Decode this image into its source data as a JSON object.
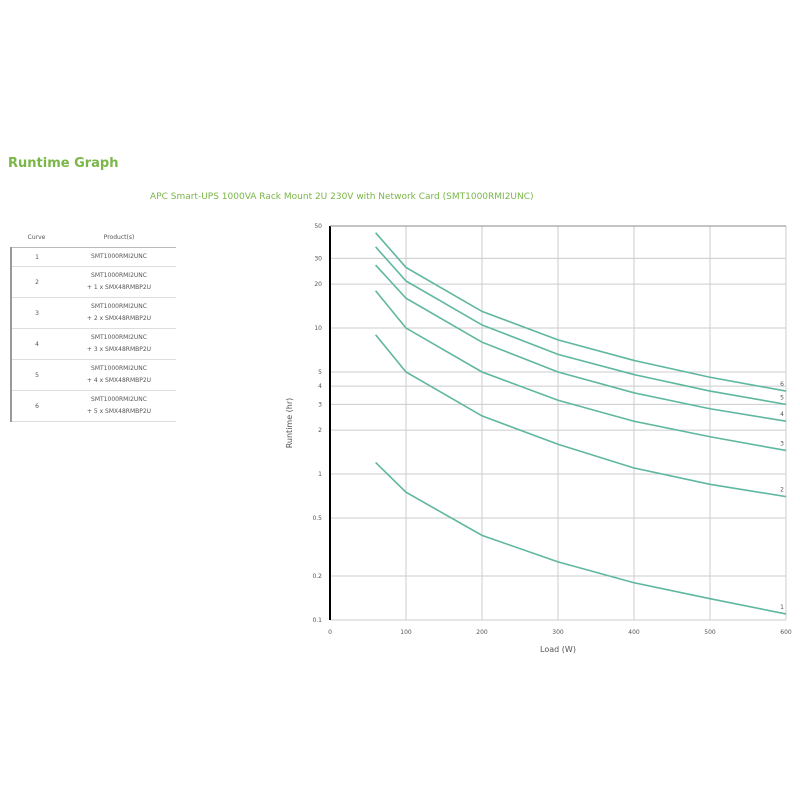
{
  "heading": "Runtime Graph",
  "subtitle": "APC Smart-UPS 1000VA Rack Mount 2U 230V with Network Card (SMT1000RMI2UNC)",
  "legend": {
    "headers": [
      "Curve",
      "Product(s)"
    ],
    "rows": [
      {
        "curve": "1",
        "products": [
          "SMT1000RMI2UNC"
        ]
      },
      {
        "curve": "2",
        "products": [
          "SMT1000RMI2UNC",
          "+ 1 x SMX48RMBP2U"
        ]
      },
      {
        "curve": "3",
        "products": [
          "SMT1000RMI2UNC",
          "+ 2 x SMX48RMBP2U"
        ]
      },
      {
        "curve": "4",
        "products": [
          "SMT1000RMI2UNC",
          "+ 3 x SMX48RMBP2U"
        ]
      },
      {
        "curve": "5",
        "products": [
          "SMT1000RMI2UNC",
          "+ 4 x SMX48RMBP2U"
        ]
      },
      {
        "curve": "6",
        "products": [
          "SMT1000RMI2UNC",
          "+ 5 x SMX48RMBP2U"
        ]
      }
    ]
  },
  "colors": {
    "heading": "#7ab648",
    "curve": "#5fb7a0",
    "grid": "#cccccc"
  },
  "chart_data": {
    "type": "line",
    "xlabel": "Load (W)",
    "ylabel": "Runtime (hr)",
    "yscale": "log",
    "x_ticks": [
      0,
      100,
      200,
      300,
      400,
      500,
      600
    ],
    "y_ticks": [
      0.1,
      0.2,
      0.5,
      1,
      2,
      3,
      4,
      5,
      10,
      20,
      30,
      50
    ],
    "xlim": [
      0,
      600
    ],
    "ylim": [
      0.1,
      50
    ],
    "grid": true,
    "series": [
      {
        "name": "1",
        "x": [
          60,
          100,
          200,
          300,
          400,
          500,
          600
        ],
        "y": [
          1.2,
          0.75,
          0.38,
          0.25,
          0.18,
          0.14,
          0.11
        ]
      },
      {
        "name": "2",
        "x": [
          60,
          100,
          200,
          300,
          400,
          500,
          600
        ],
        "y": [
          9,
          5,
          2.5,
          1.6,
          1.1,
          0.85,
          0.7
        ]
      },
      {
        "name": "3",
        "x": [
          60,
          100,
          200,
          300,
          400,
          500,
          600
        ],
        "y": [
          18,
          10,
          5,
          3.2,
          2.3,
          1.8,
          1.45
        ]
      },
      {
        "name": "4",
        "x": [
          60,
          100,
          200,
          300,
          400,
          500,
          600
        ],
        "y": [
          27,
          16,
          8,
          5,
          3.6,
          2.8,
          2.3
        ]
      },
      {
        "name": "5",
        "x": [
          60,
          100,
          200,
          300,
          400,
          500,
          600
        ],
        "y": [
          36,
          21,
          10.5,
          6.6,
          4.8,
          3.7,
          3.0
        ]
      },
      {
        "name": "6",
        "x": [
          60,
          100,
          200,
          300,
          400,
          500,
          600
        ],
        "y": [
          45,
          26,
          13,
          8.3,
          6.0,
          4.6,
          3.7
        ]
      }
    ]
  }
}
